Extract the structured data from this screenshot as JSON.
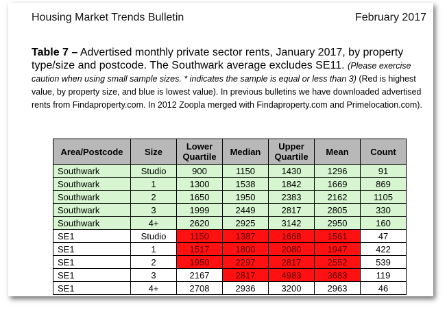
{
  "header": {
    "title": "Housing Market Trends Bulletin",
    "date": "February 2017"
  },
  "caption": {
    "table_label": "Table 7 –",
    "text": " Advertised monthly private sector rents, January 2017, by property type/size and postcode. The Southwark average excludes SE11. ",
    "italic_note": "(Please exercise caution when using small sample sizes. * indicates the sample is equal or less than 3)",
    "notes": " (Red is highest value, by property size, and blue is lowest value). In previous bulletins we have downloaded advertised rents from Findaproperty.com. In 2012 Zoopla merged with Findaproperty.com and Primelocation.com)."
  },
  "table": {
    "headers": [
      "Area/Postcode",
      "Size",
      "Lower Quartile",
      "Median",
      "Upper Quartile",
      "Mean",
      "Count"
    ],
    "colors": {
      "green_row": "#d6f5d0",
      "red_cell": "#ff1111",
      "header_bg": "#b8b8b8"
    },
    "rows": [
      {
        "area": "Southwark",
        "size": "Studio",
        "lq": "900",
        "median": "1150",
        "uq": "1430",
        "mean": "1296",
        "count": "91",
        "style": "green",
        "red": []
      },
      {
        "area": "Southwark",
        "size": "1",
        "lq": "1300",
        "median": "1538",
        "uq": "1842",
        "mean": "1669",
        "count": "869",
        "style": "green",
        "red": []
      },
      {
        "area": "Southwark",
        "size": "2",
        "lq": "1650",
        "median": "1950",
        "uq": "2383",
        "mean": "2162",
        "count": "1105",
        "style": "green",
        "red": []
      },
      {
        "area": "Southwark",
        "size": "3",
        "lq": "1999",
        "median": "2449",
        "uq": "2817",
        "mean": "2805",
        "count": "330",
        "style": "green",
        "red": []
      },
      {
        "area": "Southwark",
        "size": "4+",
        "lq": "2620",
        "median": "2925",
        "uq": "3142",
        "mean": "2950",
        "count": "160",
        "style": "green",
        "red": []
      },
      {
        "area": "SE1",
        "size": "Studio",
        "lq": "1150",
        "median": "1387",
        "uq": "1668",
        "mean": "1561",
        "count": "47",
        "style": "plain",
        "red": [
          "lq",
          "median",
          "uq",
          "mean"
        ]
      },
      {
        "area": "SE1",
        "size": "1",
        "lq": "1517",
        "median": "1800",
        "uq": "2080",
        "mean": "1947",
        "count": "422",
        "style": "plain",
        "red": [
          "lq",
          "median",
          "uq",
          "mean"
        ]
      },
      {
        "area": "SE1",
        "size": "2",
        "lq": "1950",
        "median": "2297",
        "uq": "2817",
        "mean": "2552",
        "count": "539",
        "style": "plain",
        "red": [
          "lq",
          "median",
          "uq",
          "mean"
        ]
      },
      {
        "area": "SE1",
        "size": "3",
        "lq": "2167",
        "median": "2817",
        "uq": "4983",
        "mean": "3683",
        "count": "119",
        "style": "plain",
        "red": [
          "median",
          "uq",
          "mean"
        ]
      },
      {
        "area": "SE1",
        "size": "4+",
        "lq": "2708",
        "median": "2936",
        "uq": "3200",
        "mean": "2963",
        "count": "46",
        "style": "plain",
        "red": []
      }
    ]
  }
}
